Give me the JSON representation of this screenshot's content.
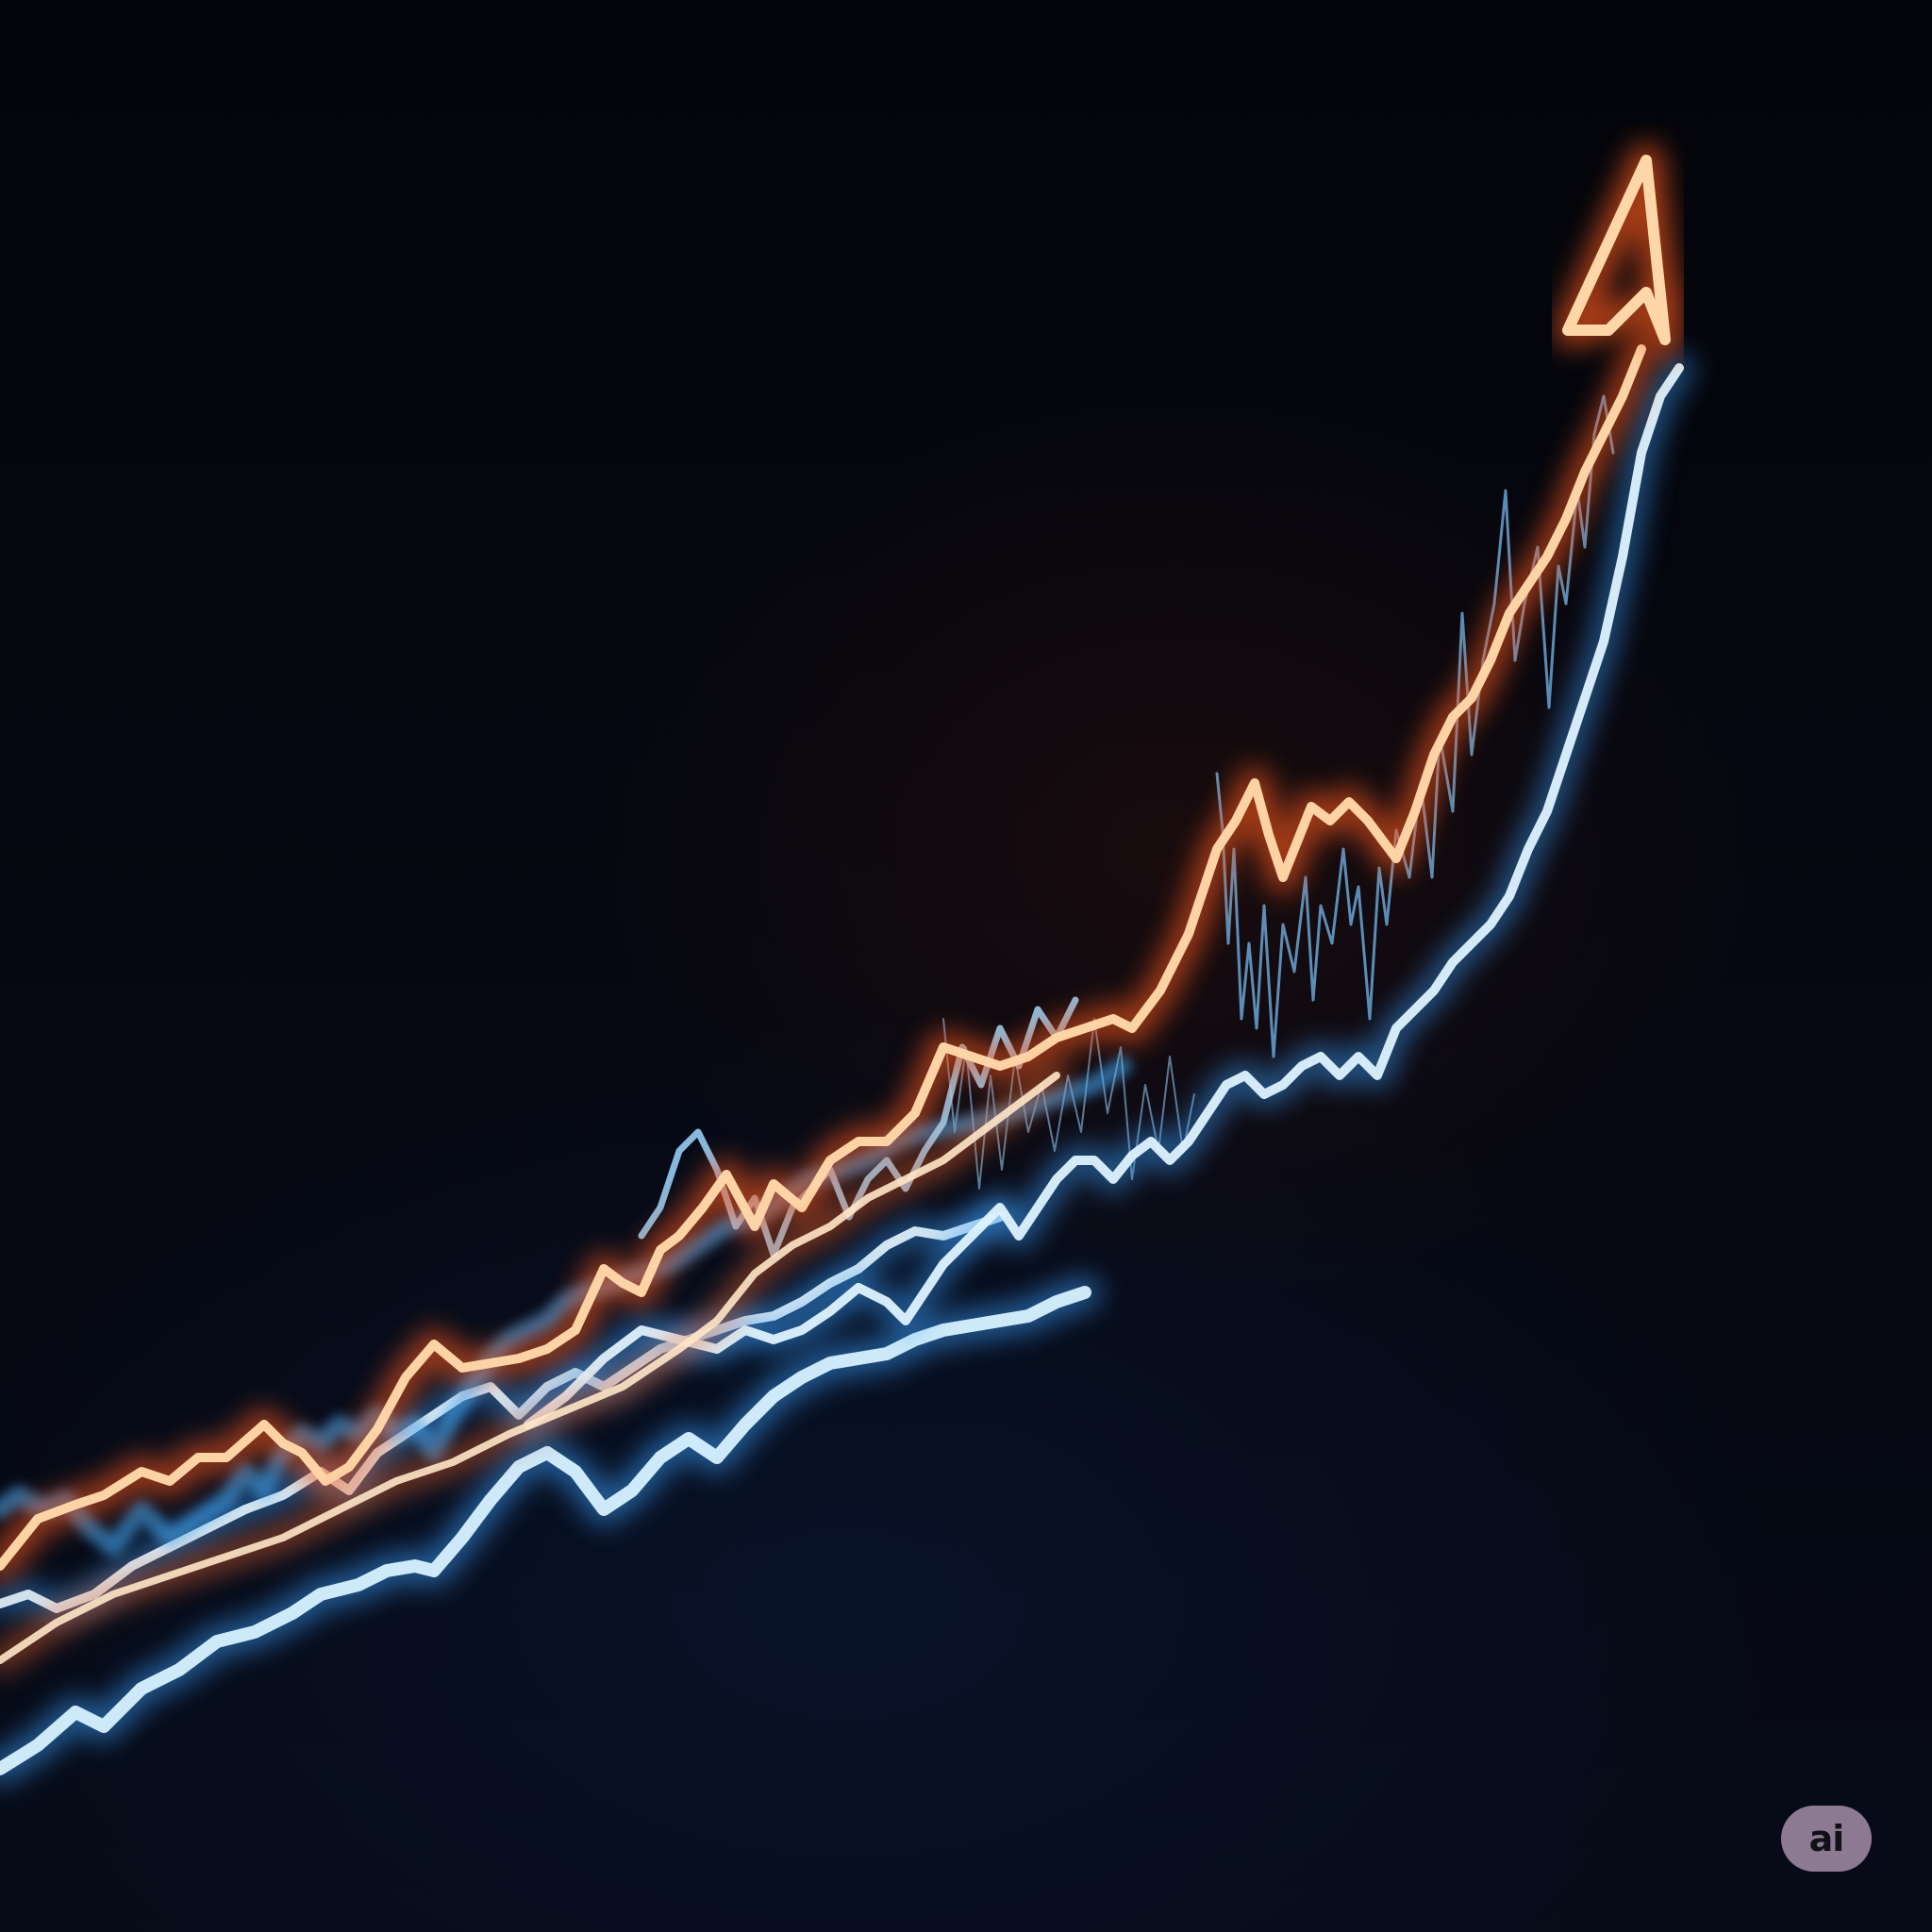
{
  "badge": {
    "label": "ai"
  },
  "palette": {
    "background": "#05070d",
    "orange_glow": "#ff6a2a",
    "orange_core": "#ffd2a0",
    "blue_glow": "#3aa0ff",
    "blue_core": "#d8f1ff",
    "vertical_bars": "#2a5a9c",
    "badge_background": "#8c7a92",
    "badge_text": "#111218"
  },
  "icons": [
    "upward-arrow-icon"
  ]
}
